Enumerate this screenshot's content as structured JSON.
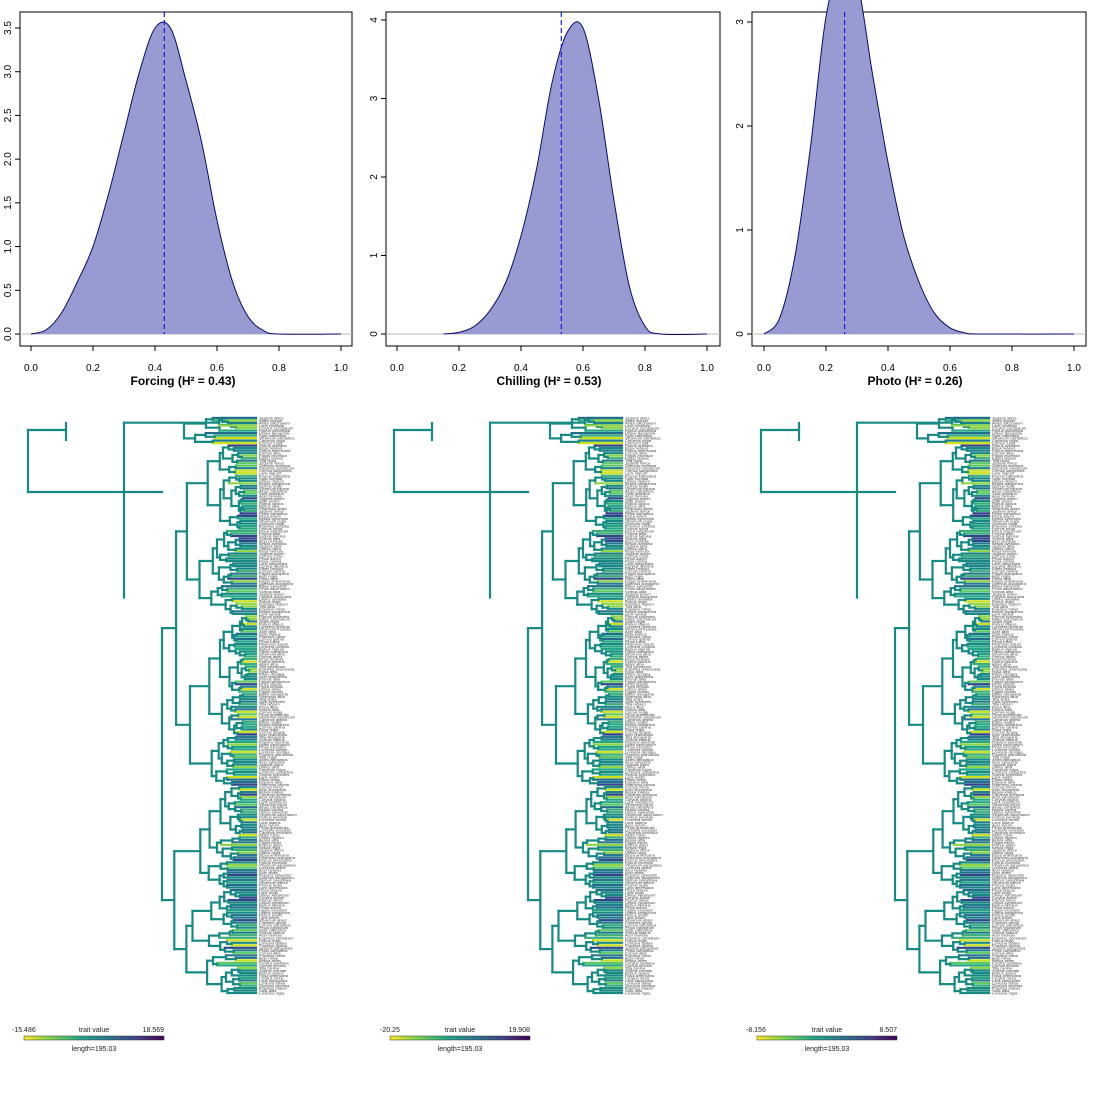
{
  "chart_data": [
    {
      "type": "area",
      "panel": "forcing",
      "xlabel": "Forcing (H² = 0.43)",
      "xlim": [
        0,
        1
      ],
      "ylim": [
        0,
        3.6
      ],
      "x_ticks": [
        "0.0",
        "0.2",
        "0.4",
        "0.6",
        "0.8",
        "1.0"
      ],
      "y_ticks": [
        "0.0",
        "0.5",
        "1.0",
        "1.5",
        "2.0",
        "2.5",
        "3.0",
        "3.5"
      ],
      "vline": 0.43,
      "x": [
        0.0,
        0.05,
        0.1,
        0.15,
        0.2,
        0.25,
        0.3,
        0.35,
        0.4,
        0.45,
        0.5,
        0.55,
        0.6,
        0.65,
        0.7,
        0.75,
        0.8,
        1.0
      ],
      "y": [
        0.0,
        0.05,
        0.25,
        0.6,
        1.0,
        1.6,
        2.3,
        3.0,
        3.5,
        3.5,
        2.9,
        2.2,
        1.3,
        0.6,
        0.2,
        0.04,
        0.0,
        0.0
      ]
    },
    {
      "type": "area",
      "panel": "chilling",
      "xlabel": "Chilling (H² = 0.53)",
      "xlim": [
        0,
        1
      ],
      "ylim": [
        0,
        4.1
      ],
      "x_ticks": [
        "0.0",
        "0.2",
        "0.4",
        "0.6",
        "0.8",
        "1.0"
      ],
      "y_ticks": [
        "0",
        "1",
        "2",
        "3",
        "4"
      ],
      "vline": 0.53,
      "x": [
        0.15,
        0.2,
        0.25,
        0.3,
        0.35,
        0.4,
        0.45,
        0.5,
        0.55,
        0.6,
        0.65,
        0.7,
        0.75,
        0.8,
        0.85,
        1.0
      ],
      "y": [
        0.0,
        0.02,
        0.1,
        0.3,
        0.65,
        1.25,
        2.1,
        3.2,
        3.85,
        3.9,
        3.0,
        1.7,
        0.6,
        0.1,
        0.0,
        0.0
      ]
    },
    {
      "type": "area",
      "panel": "photo",
      "xlabel": "Photo (H² = 0.26)",
      "xlim": [
        0,
        1
      ],
      "ylim": [
        0,
        3.75
      ],
      "x_ticks": [
        "0.0",
        "0.2",
        "0.4",
        "0.6",
        "0.8",
        "1.0"
      ],
      "y_ticks": [
        "0",
        "1",
        "2",
        "3"
      ],
      "vline": 0.26,
      "x": [
        0.0,
        0.05,
        0.1,
        0.15,
        0.2,
        0.25,
        0.3,
        0.35,
        0.4,
        0.45,
        0.5,
        0.55,
        0.6,
        0.65,
        0.7,
        1.0
      ],
      "y": [
        0.0,
        0.15,
        0.75,
        1.8,
        3.05,
        3.55,
        3.4,
        2.5,
        1.65,
        0.95,
        0.5,
        0.2,
        0.06,
        0.01,
        0.0,
        0.0
      ]
    }
  ],
  "trees": [
    {
      "panel": "forcing",
      "legend_min": "-15.486",
      "legend_title": "trait value",
      "legend_max": "18.569",
      "length_label": "length=195.03"
    },
    {
      "panel": "chilling",
      "legend_min": "-20.25",
      "legend_title": "trait value",
      "legend_max": "19.908",
      "length_label": "length=195.03"
    },
    {
      "panel": "photo",
      "legend_min": "-8.156",
      "legend_title": "trait value",
      "legend_max": "8.507",
      "length_label": "length=195.03"
    }
  ],
  "colors": {
    "fill": "#989ad2",
    "outline": "#0a0a6e",
    "median_line": "#1a1ad8",
    "baseline": "#bdbdbd",
    "tree_main": "#178a84",
    "viridis": [
      "#fde725",
      "#7ad151",
      "#22a884",
      "#2a788e",
      "#414487",
      "#440154"
    ]
  }
}
